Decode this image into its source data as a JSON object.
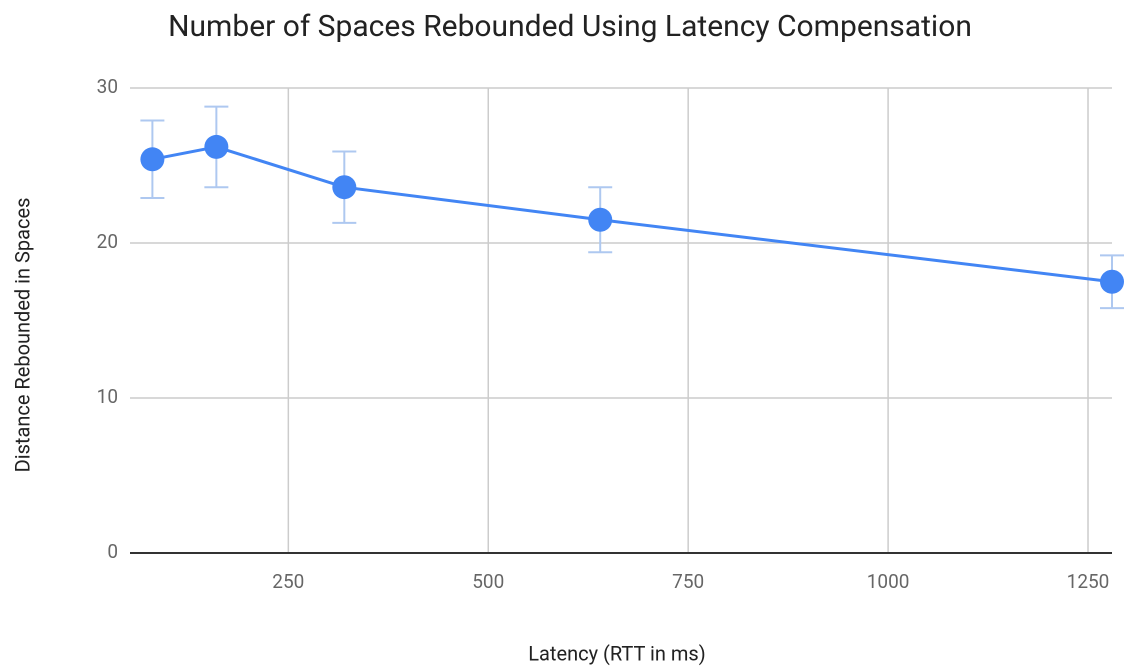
{
  "chart_data": {
    "type": "line",
    "title": "Number of Spaces Rebounded Using Latency Compensation",
    "x_label": "Latency (RTT in ms)",
    "y_label": "Distance Rebounded in Spaces",
    "x": [
      80,
      160,
      320,
      640,
      1280
    ],
    "series": [
      {
        "name": "Distance Rebounded in Spaces",
        "color": "#4285f4",
        "values": [
          25.4,
          26.2,
          23.6,
          21.5,
          17.5
        ],
        "errors": [
          2.5,
          2.6,
          2.3,
          2.1,
          1.7
        ]
      }
    ],
    "xlim": [
      52,
      1280
    ],
    "xticks": [
      250,
      500,
      750,
      1000,
      1250
    ],
    "ylim": [
      0,
      30
    ],
    "yticks": [
      0,
      10,
      20,
      30
    ],
    "grid": true
  }
}
